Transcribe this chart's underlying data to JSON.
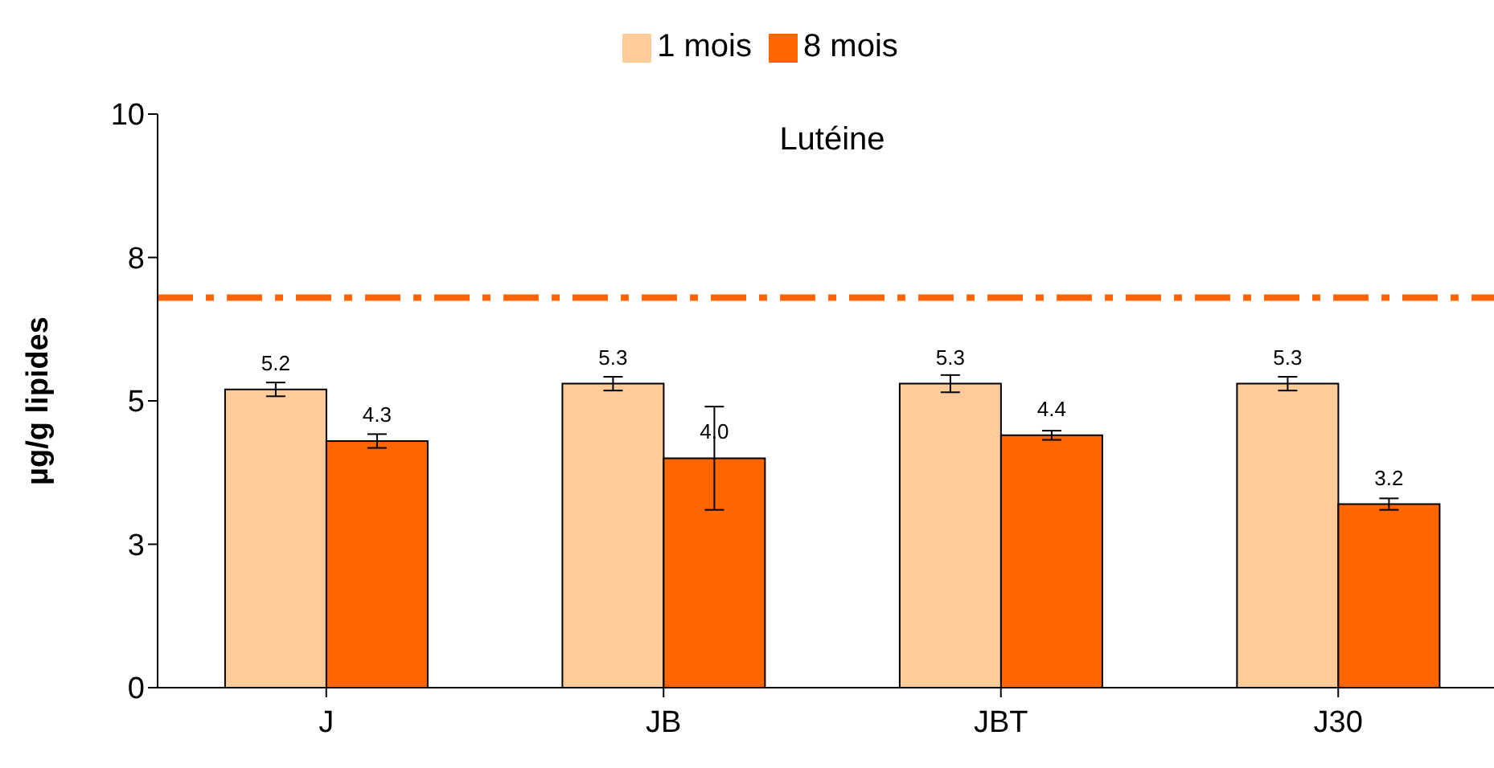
{
  "chart_data": {
    "type": "bar",
    "title": "Lutéine",
    "ylabel": "µg/g lipides",
    "categories": [
      "J",
      "JB",
      "JBT",
      "J30"
    ],
    "series": [
      {
        "name": "1 mois",
        "color": "#ffcc99",
        "values": [
          5.2,
          5.3,
          5.3,
          5.3
        ],
        "value_labels": [
          "5.2",
          "5.3",
          "5.3",
          "5.3"
        ],
        "errors": [
          0.12,
          0.12,
          0.15,
          0.12
        ]
      },
      {
        "name": "8 mois",
        "color": "#ff6600",
        "values": [
          4.3,
          4.0,
          4.4,
          3.2
        ],
        "value_labels": [
          "4.3",
          "4.0",
          "4.4",
          "3.2"
        ],
        "errors": [
          0.12,
          0.9,
          0.08,
          0.1
        ]
      }
    ],
    "ylim": [
      0,
      10
    ],
    "yticks": [
      0,
      {
        "value": 2.5,
        "label": "3"
      },
      5,
      {
        "value": 7.5,
        "label": "8"
      },
      10
    ],
    "ref_lines": [
      {
        "axis": "y",
        "value": 6.8,
        "color": "#ff6600",
        "line_style": "dashdot"
      }
    ],
    "legend": "top",
    "grid": false
  }
}
